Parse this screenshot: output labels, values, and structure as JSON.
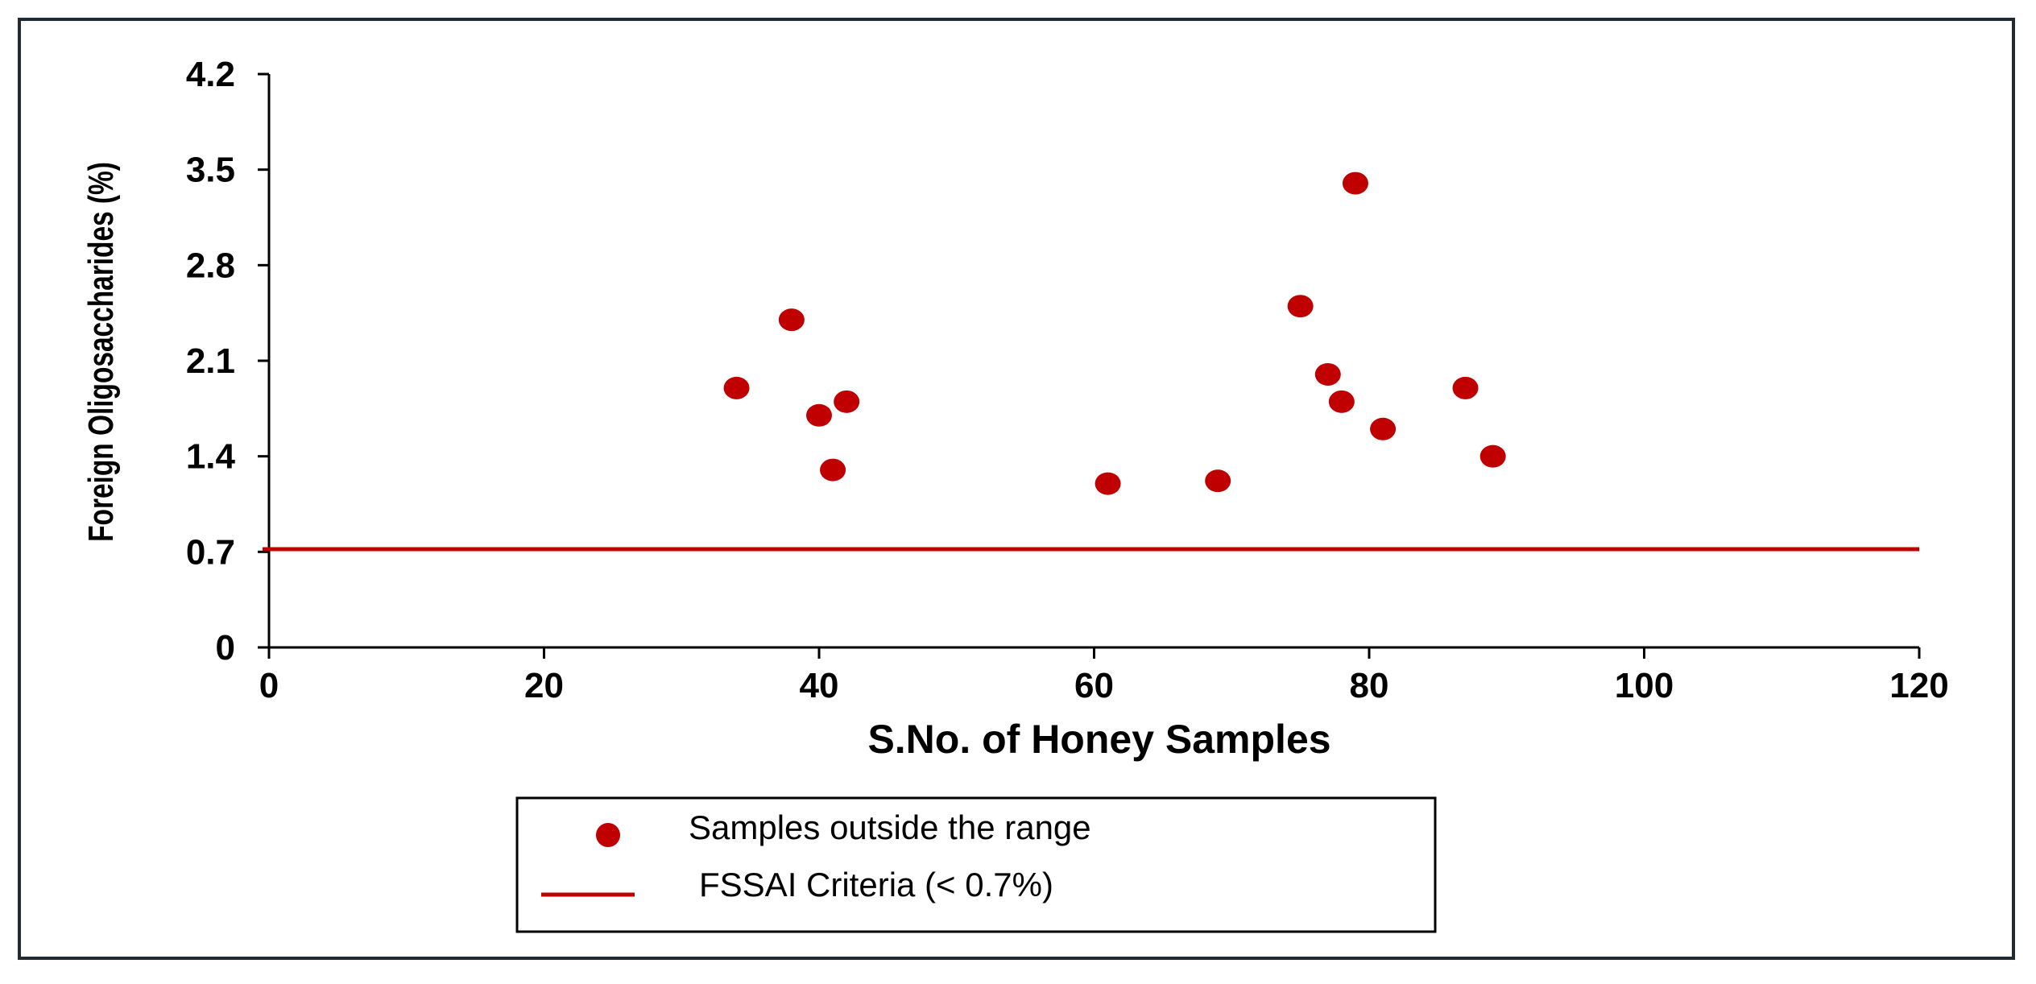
{
  "chart_data": {
    "type": "scatter",
    "title": "",
    "xlabel": "S.No. of Honey Samples",
    "ylabel": "Foreign Oligosaccharides (%)",
    "xlim": [
      0,
      120
    ],
    "ylim": [
      0,
      4.2
    ],
    "x_ticks": [
      "0",
      "20",
      "40",
      "60",
      "80",
      "100",
      "120"
    ],
    "y_ticks": [
      "0",
      "0.7",
      "1.4",
      "2.1",
      "2.8",
      "3.5",
      "4.2"
    ],
    "grid": false,
    "legend_position": "bottom-center",
    "series": [
      {
        "name": "Samples outside the range",
        "kind": "scatter",
        "color": "#c00000",
        "points": [
          {
            "x": 34,
            "y": 1.9
          },
          {
            "x": 38,
            "y": 2.4
          },
          {
            "x": 40,
            "y": 1.7
          },
          {
            "x": 41,
            "y": 1.3
          },
          {
            "x": 42,
            "y": 1.8
          },
          {
            "x": 61,
            "y": 1.2
          },
          {
            "x": 69,
            "y": 1.22
          },
          {
            "x": 75,
            "y": 2.5
          },
          {
            "x": 77,
            "y": 2.0
          },
          {
            "x": 78,
            "y": 1.8
          },
          {
            "x": 79,
            "y": 3.4
          },
          {
            "x": 81,
            "y": 1.6
          },
          {
            "x": 87,
            "y": 1.9
          },
          {
            "x": 89,
            "y": 1.4
          }
        ]
      },
      {
        "name": "FSSAI Criteria (< 0.7%)",
        "kind": "line",
        "color": "#c00000",
        "y": 0.72
      }
    ]
  }
}
